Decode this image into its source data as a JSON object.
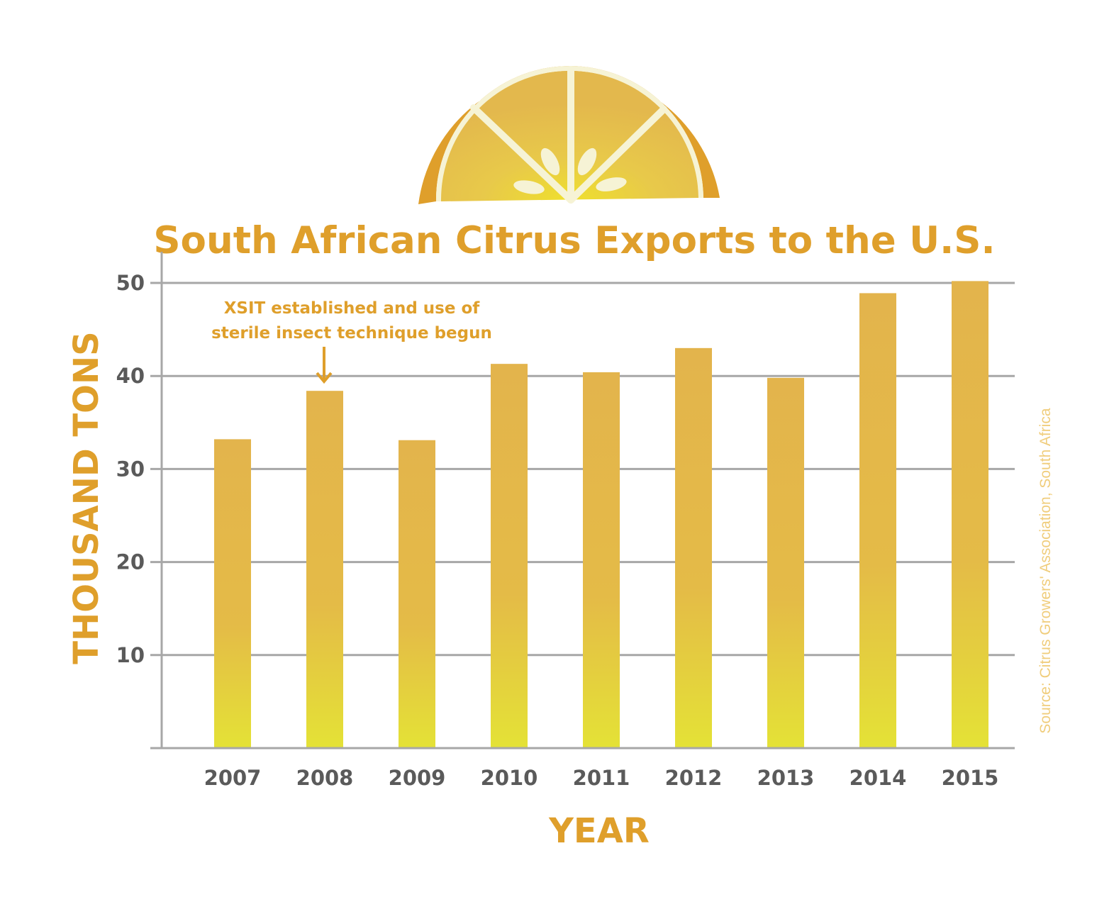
{
  "colors": {
    "accent": "#df9f2b",
    "bar_top": "#e3b44c",
    "bar_bottom": "#e4e236",
    "grid": "#a7a7a7",
    "tick_text": "#5a5a5a",
    "source_text": "#f0cd7c"
  },
  "icons": {
    "header": "lemon-slice-icon",
    "annotation": "arrow-down-icon"
  },
  "chart_data": {
    "type": "bar",
    "title": "South African Citrus Exports to the U.S.",
    "xlabel": "YEAR",
    "ylabel": "THOUSAND TONS",
    "categories": [
      "2007",
      "2008",
      "2009",
      "2010",
      "2011",
      "2012",
      "2013",
      "2014",
      "2015"
    ],
    "values": [
      33.2,
      38.4,
      33.1,
      41.3,
      40.4,
      43.0,
      39.8,
      48.9,
      50.2
    ],
    "ylim": [
      0,
      50
    ],
    "yticks": [
      "10",
      "20",
      "30",
      "40",
      "50"
    ],
    "ytick_values": [
      10,
      20,
      30,
      40,
      50
    ],
    "grid": true,
    "annotation": {
      "category": "2008",
      "lines": [
        "XSIT established and use of",
        "sterile insect technique begun"
      ]
    },
    "source": "Source: Citrus Growers' Association, South Africa"
  }
}
